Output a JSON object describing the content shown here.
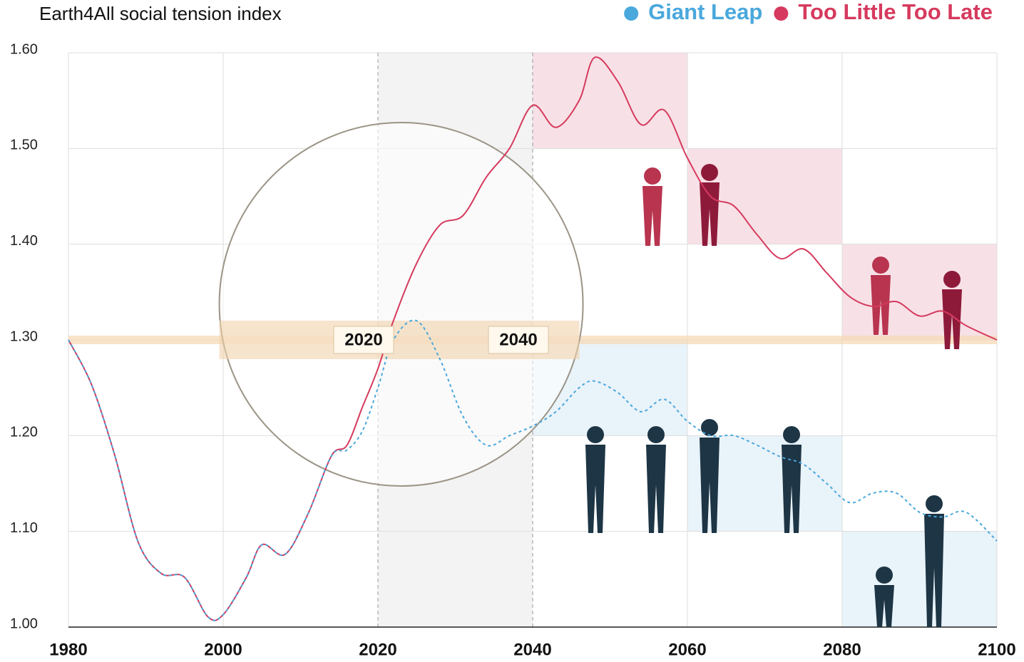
{
  "chart_data": {
    "type": "line",
    "title": "Earth4All social tension index",
    "x": [
      1980,
      1983,
      1986,
      1989,
      1992,
      1995,
      1998,
      2000,
      2003,
      2005,
      2008,
      2011,
      2014,
      2016,
      2018,
      2020,
      2022,
      2025,
      2028,
      2031,
      2034,
      2037,
      2040,
      2043,
      2046,
      2048,
      2051,
      2054,
      2057,
      2060,
      2063,
      2066,
      2069,
      2072,
      2075,
      2078,
      2081,
      2084,
      2087,
      2090,
      2093,
      2096,
      2100
    ],
    "series": [
      {
        "name": "Too Little Too Late",
        "color": "#d63a5e",
        "values": [
          1.3,
          1.253,
          1.179,
          1.089,
          1.056,
          1.052,
          1.011,
          1.013,
          1.052,
          1.086,
          1.076,
          1.119,
          1.179,
          1.19,
          1.23,
          1.27,
          1.32,
          1.38,
          1.42,
          1.43,
          1.47,
          1.5,
          1.545,
          1.522,
          1.55,
          1.595,
          1.57,
          1.525,
          1.54,
          1.49,
          1.45,
          1.44,
          1.41,
          1.385,
          1.395,
          1.37,
          1.345,
          1.335,
          1.34,
          1.325,
          1.33,
          1.315,
          1.3
        ]
      },
      {
        "name": "Giant Leap",
        "color": "#4aa8dc",
        "values": [
          1.3,
          1.253,
          1.179,
          1.089,
          1.056,
          1.052,
          1.011,
          1.013,
          1.052,
          1.086,
          1.076,
          1.119,
          1.179,
          1.185,
          1.205,
          1.25,
          1.3,
          1.32,
          1.28,
          1.22,
          1.19,
          1.2,
          1.21,
          1.225,
          1.25,
          1.257,
          1.245,
          1.225,
          1.238,
          1.215,
          1.2,
          1.2,
          1.19,
          1.178,
          1.17,
          1.15,
          1.13,
          1.14,
          1.14,
          1.12,
          1.115,
          1.12,
          1.09
        ]
      }
    ],
    "xlim": [
      1980,
      2100
    ],
    "xticks": [
      1980,
      2000,
      2020,
      2040,
      2060,
      2080,
      2100
    ],
    "ylim": [
      1.0,
      1.6
    ],
    "yticks": [
      {
        "value": 1.0,
        "label": "1.00"
      },
      {
        "value": 1.1,
        "label": "1.10"
      },
      {
        "value": 1.2,
        "label": "1.20"
      },
      {
        "value": 1.3,
        "label": "1.30"
      },
      {
        "value": 1.4,
        "label": "1.40"
      },
      {
        "value": 1.5,
        "label": "1.50"
      },
      {
        "value": 1.6,
        "label": "1.60"
      }
    ],
    "grid": true,
    "legend": "top-right",
    "annotations": [
      "2020",
      "2040"
    ]
  }
}
